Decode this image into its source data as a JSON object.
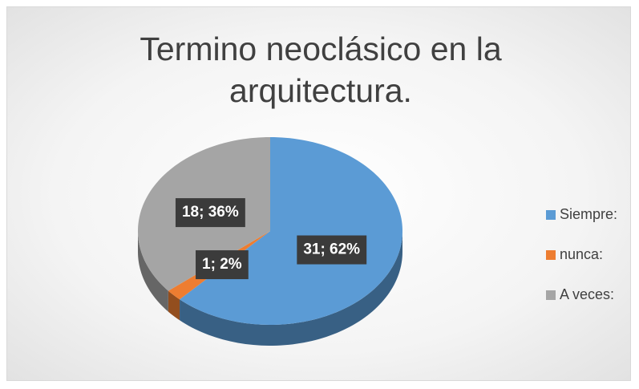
{
  "chart_data": {
    "type": "pie",
    "title": "Termino neoclásico en la arquitectura.",
    "categories": [
      "Siempre:",
      "nunca:",
      "A veces:"
    ],
    "values": [
      31,
      1,
      18
    ],
    "value_labels": [
      "31; 62%",
      "1; 2%",
      "18; 36%"
    ],
    "colors": [
      "#5b9bd5",
      "#ed7d31",
      "#a5a5a5"
    ],
    "legend": "right"
  }
}
